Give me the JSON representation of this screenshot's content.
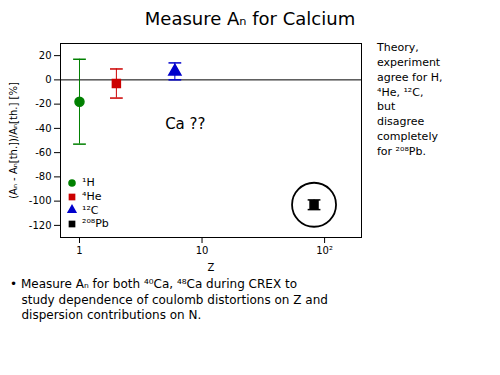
{
  "chart_data": {
    "type": "scatter",
    "title": "Measure Aₙ for Calcium",
    "xlabel": "Z",
    "ylabel": "(Aₙ - Aₙ[th.])/Aₙ[th.] [%]",
    "log": "x",
    "xlim": [
      0.7,
      200
    ],
    "ylim": [
      -130,
      30
    ],
    "xticks": [
      1,
      10,
      {
        "value": 100,
        "label": "10²"
      }
    ],
    "yticks": [
      -120,
      -100,
      -80,
      -60,
      -40,
      -20,
      0,
      20
    ],
    "grid": false,
    "legend": "lower left",
    "series": [
      {
        "name": "¹H",
        "color": "#008000",
        "marker": "circle",
        "x": [
          1
        ],
        "values": [
          -18
        ],
        "error_low": [
          35
        ],
        "error_high": [
          35
        ]
      },
      {
        "name": "⁴He",
        "color": "#cc0000",
        "marker": "square",
        "x": [
          2
        ],
        "values": [
          -3
        ],
        "error_low": [
          12
        ],
        "error_high": [
          12
        ]
      },
      {
        "name": "¹²C",
        "color": "#0000cc",
        "marker": "triangle",
        "x": [
          6
        ],
        "values": [
          7
        ],
        "error_low": [
          7
        ],
        "error_high": [
          7
        ]
      },
      {
        "name": "²⁰⁸Pb",
        "color": "#000000",
        "marker": "square",
        "x": [
          82
        ],
        "values": [
          -103
        ],
        "error_low": [
          4
        ],
        "error_high": [
          4
        ]
      }
    ],
    "hline_y": 0,
    "highlight": "²⁰⁸Pb",
    "annotations": [
      {
        "text": "Ca ??",
        "x": 5,
        "y": -32
      }
    ],
    "side_note": "Theory,\nexperiment\nagree for H,\n⁴He, ¹²C,\nbut\ndisagree\ncompletely\nfor ²⁰⁸Pb.",
    "footnote": "• Measure Aₙ for both ⁴⁰Ca, ⁴⁸Ca during CREX to\n   study dependence of coulomb distortions on Z and\n   dispersion contributions on N."
  }
}
